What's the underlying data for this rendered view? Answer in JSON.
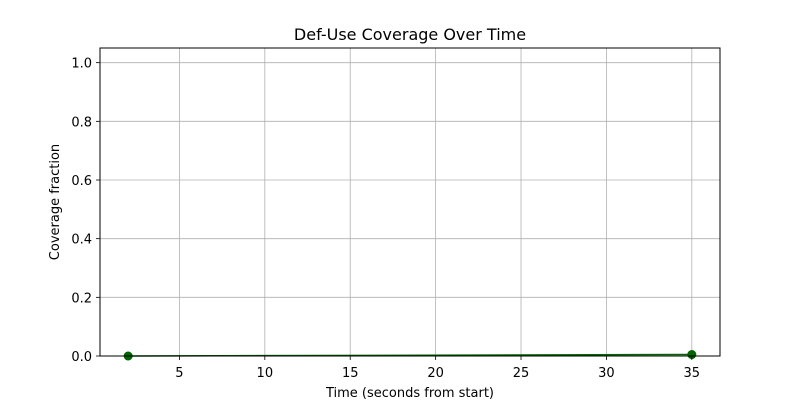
{
  "chart_data": {
    "type": "line",
    "title": "Def-Use Coverage Over Time",
    "xlabel": "Time (seconds from start)",
    "ylabel": "Coverage fraction",
    "xlim": [
      0.35,
      36.65
    ],
    "ylim": [
      0,
      1.05
    ],
    "xticks": [
      5,
      10,
      15,
      20,
      25,
      30,
      35
    ],
    "yticks": [
      0.0,
      0.2,
      0.4,
      0.6,
      0.8,
      1.0
    ],
    "xtick_labels": [
      "5",
      "10",
      "15",
      "20",
      "25",
      "30",
      "35"
    ],
    "ytick_labels": [
      "0.0",
      "0.2",
      "0.4",
      "0.6",
      "0.8",
      "1.0"
    ],
    "grid": true,
    "series": [
      {
        "color": "#006400",
        "marker": "circle",
        "x": [
          2,
          35
        ],
        "y": [
          0.0,
          0.005
        ]
      }
    ]
  }
}
